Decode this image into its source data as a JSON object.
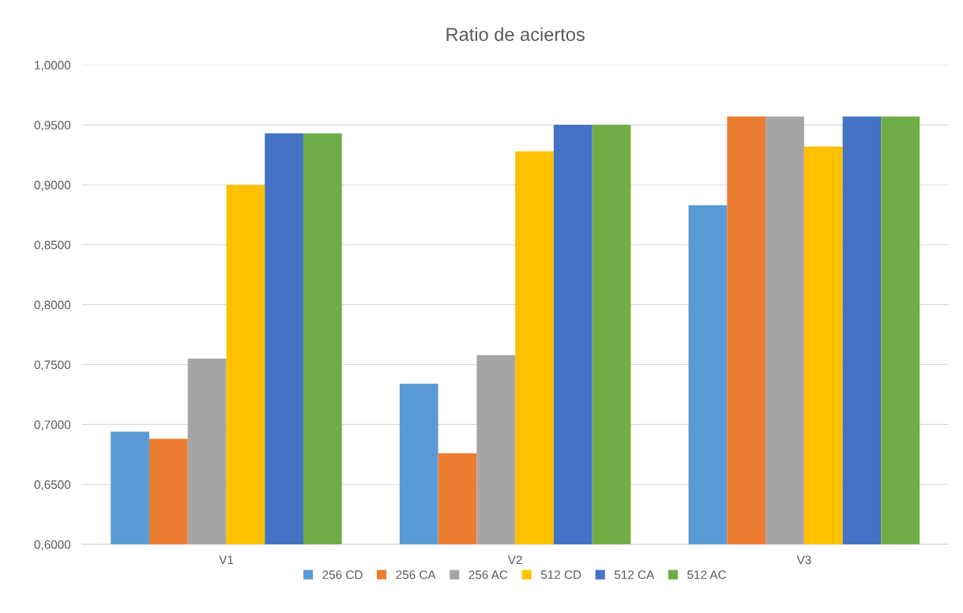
{
  "chart_data": {
    "type": "bar",
    "title": "Ratio de aciertos",
    "categories": [
      "V1",
      "V2",
      "V3"
    ],
    "series": [
      {
        "name": "256 CD",
        "color": "#5b9bd5",
        "values": [
          0.694,
          0.734,
          0.883
        ]
      },
      {
        "name": "256 CA",
        "color": "#ed7d31",
        "values": [
          0.688,
          0.676,
          0.957
        ]
      },
      {
        "name": "256 AC",
        "color": "#a5a5a5",
        "values": [
          0.755,
          0.758,
          0.957
        ]
      },
      {
        "name": "512 CD",
        "color": "#ffc000",
        "values": [
          0.9,
          0.928,
          0.932
        ]
      },
      {
        "name": "512 CA",
        "color": "#4472c4",
        "values": [
          0.943,
          0.95,
          0.957
        ]
      },
      {
        "name": "512 AC",
        "color": "#70ad47",
        "values": [
          0.943,
          0.95,
          0.957
        ]
      }
    ],
    "ylim": [
      0.6,
      1.0
    ],
    "yticks": [
      {
        "value": 0.6,
        "label": "0,6000"
      },
      {
        "value": 0.65,
        "label": "0,6500"
      },
      {
        "value": 0.7,
        "label": "0,7000"
      },
      {
        "value": 0.75,
        "label": "0,7500"
      },
      {
        "value": 0.8,
        "label": "0,8000"
      },
      {
        "value": 0.85,
        "label": "0,8500"
      },
      {
        "value": 0.9,
        "label": "0,9000"
      },
      {
        "value": 0.95,
        "label": "0,9500"
      },
      {
        "value": 1.0,
        "label": "1,0000"
      }
    ],
    "grid": "y",
    "legend": "bottom"
  }
}
